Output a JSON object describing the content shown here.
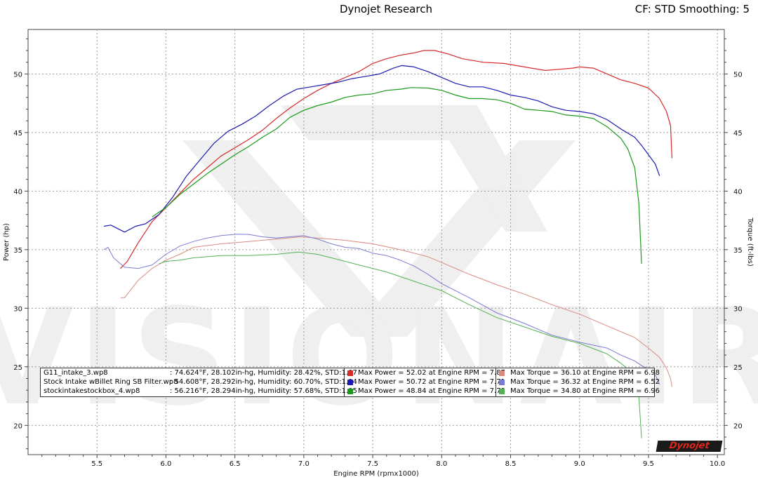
{
  "header": {
    "title": "Dynojet Research",
    "cf_info": "CF: STD Smoothing: 5"
  },
  "watermark": "VISIONAIR",
  "logo_text": "Dynojet",
  "chart_data": {
    "type": "line",
    "title": "Dynojet Research",
    "xlabel": "Engine RPM (rpmx1000)",
    "ylabel": "Power (hp)",
    "y2label": "Torque (ft-lbs)",
    "xlim": [
      5.0,
      10.05
    ],
    "ylim": [
      17.5,
      53.8
    ],
    "xticks": [
      "5.5",
      "6.0",
      "6.5",
      "7.0",
      "7.5",
      "8.0",
      "8.5",
      "9.0",
      "9.5",
      "10.0"
    ],
    "yticks": [
      "20",
      "25",
      "30",
      "35",
      "40",
      "45",
      "50"
    ],
    "y2ticks": [
      "20",
      "25",
      "30",
      "35",
      "40",
      "45",
      "50"
    ],
    "grid": true,
    "series": [
      {
        "name": "G11_intake_3.wp8 Power",
        "metric": "power",
        "color": "#d42a2a",
        "x": [
          5.67,
          5.72,
          5.8,
          5.9,
          6.0,
          6.1,
          6.2,
          6.3,
          6.4,
          6.5,
          6.6,
          6.7,
          6.8,
          6.9,
          7.0,
          7.1,
          7.2,
          7.3,
          7.4,
          7.5,
          7.6,
          7.7,
          7.8,
          7.87,
          7.95,
          8.05,
          8.15,
          8.3,
          8.45,
          8.6,
          8.75,
          8.85,
          8.95,
          9.0,
          9.1,
          9.2,
          9.3,
          9.4,
          9.5,
          9.58,
          9.63,
          9.66,
          9.67
        ],
        "y": [
          33.4,
          34.0,
          35.6,
          37.4,
          38.6,
          39.8,
          41.0,
          42.0,
          43.0,
          43.7,
          44.4,
          45.2,
          46.2,
          47.1,
          47.9,
          48.6,
          49.2,
          49.7,
          50.2,
          50.9,
          51.3,
          51.6,
          51.8,
          52.0,
          52.0,
          51.7,
          51.3,
          51.0,
          50.9,
          50.6,
          50.3,
          50.4,
          50.5,
          50.6,
          50.5,
          50.0,
          49.5,
          49.2,
          48.8,
          47.9,
          46.8,
          45.6,
          42.8
        ]
      },
      {
        "name": "Stock Intake wBillet Ring SB Filter.wp8 Power",
        "metric": "power",
        "color": "#1a1ab0",
        "x": [
          5.55,
          5.6,
          5.7,
          5.78,
          5.85,
          5.95,
          6.05,
          6.15,
          6.25,
          6.35,
          6.45,
          6.55,
          6.65,
          6.75,
          6.85,
          6.95,
          7.05,
          7.15,
          7.25,
          7.35,
          7.45,
          7.55,
          7.65,
          7.71,
          7.8,
          7.9,
          8.0,
          8.1,
          8.2,
          8.3,
          8.4,
          8.5,
          8.6,
          8.7,
          8.8,
          8.9,
          9.0,
          9.1,
          9.2,
          9.3,
          9.4,
          9.45,
          9.5,
          9.55,
          9.58
        ],
        "y": [
          37.0,
          37.1,
          36.5,
          37.0,
          37.2,
          38.0,
          39.5,
          41.3,
          42.7,
          44.1,
          45.1,
          45.7,
          46.4,
          47.3,
          48.1,
          48.7,
          48.9,
          49.1,
          49.3,
          49.6,
          49.8,
          50.0,
          50.5,
          50.72,
          50.6,
          50.2,
          49.7,
          49.2,
          48.9,
          48.9,
          48.6,
          48.2,
          48.0,
          47.7,
          47.2,
          46.9,
          46.8,
          46.6,
          46.1,
          45.3,
          44.6,
          43.9,
          43.1,
          42.3,
          41.3
        ]
      },
      {
        "name": "stockintakestockbox_4.wp8 Power",
        "metric": "power",
        "color": "#1a9a1a",
        "x": [
          5.9,
          6.0,
          6.1,
          6.2,
          6.3,
          6.4,
          6.5,
          6.6,
          6.7,
          6.8,
          6.9,
          7.0,
          7.1,
          7.2,
          7.3,
          7.4,
          7.5,
          7.6,
          7.7,
          7.78,
          7.9,
          8.0,
          8.1,
          8.2,
          8.3,
          8.4,
          8.5,
          8.6,
          8.7,
          8.8,
          8.9,
          9.0,
          9.1,
          9.2,
          9.3,
          9.35,
          9.4,
          9.43,
          9.45
        ],
        "y": [
          37.8,
          38.6,
          39.7,
          40.6,
          41.5,
          42.3,
          43.1,
          43.8,
          44.6,
          45.3,
          46.3,
          46.9,
          47.3,
          47.6,
          48.0,
          48.2,
          48.3,
          48.6,
          48.7,
          48.84,
          48.8,
          48.6,
          48.2,
          47.9,
          47.9,
          47.8,
          47.5,
          47.0,
          46.9,
          46.8,
          46.5,
          46.4,
          46.2,
          45.5,
          44.5,
          43.6,
          42.0,
          39.0,
          33.8
        ]
      },
      {
        "name": "G11_intake_3.wp8 Torque",
        "metric": "torque",
        "color": "#d98a80",
        "x": [
          5.67,
          5.7,
          5.8,
          5.9,
          6.0,
          6.1,
          6.2,
          6.4,
          6.6,
          6.8,
          6.98,
          7.1,
          7.3,
          7.5,
          7.7,
          7.9,
          8.0,
          8.2,
          8.4,
          8.6,
          8.8,
          9.0,
          9.2,
          9.4,
          9.5,
          9.58,
          9.63,
          9.66,
          9.67
        ],
        "y": [
          30.9,
          30.9,
          32.4,
          33.4,
          34.1,
          34.6,
          35.2,
          35.5,
          35.7,
          35.9,
          36.1,
          36.0,
          35.8,
          35.5,
          35.0,
          34.4,
          33.9,
          32.9,
          32.0,
          31.2,
          30.3,
          29.5,
          28.5,
          27.5,
          26.6,
          25.8,
          24.9,
          24.0,
          23.3
        ]
      },
      {
        "name": "Stock Intake wBillet Ring SB Filter.wp8 Torque",
        "metric": "torque",
        "color": "#7b7bd4",
        "x": [
          5.55,
          5.58,
          5.62,
          5.7,
          5.8,
          5.9,
          6.0,
          6.1,
          6.2,
          6.3,
          6.4,
          6.52,
          6.6,
          6.7,
          6.8,
          6.9,
          7.0,
          7.1,
          7.2,
          7.3,
          7.4,
          7.5,
          7.6,
          7.7,
          7.8,
          7.9,
          8.0,
          8.2,
          8.4,
          8.6,
          8.8,
          9.0,
          9.2,
          9.3,
          9.4,
          9.45,
          9.5,
          9.55,
          9.58
        ],
        "y": [
          35.0,
          35.2,
          34.3,
          33.5,
          33.4,
          33.7,
          34.6,
          35.3,
          35.7,
          36.0,
          36.2,
          36.32,
          36.3,
          36.1,
          36.0,
          36.1,
          36.2,
          35.9,
          35.5,
          35.2,
          35.1,
          34.7,
          34.5,
          34.1,
          33.6,
          32.9,
          32.1,
          30.9,
          29.6,
          28.7,
          27.7,
          27.1,
          26.6,
          26.0,
          25.5,
          25.1,
          24.8,
          24.3,
          23.5
        ]
      },
      {
        "name": "stockintakestockbox_4.wp8 Torque",
        "metric": "torque",
        "color": "#55b055",
        "x": [
          5.95,
          6.0,
          6.1,
          6.2,
          6.3,
          6.4,
          6.6,
          6.8,
          6.96,
          7.1,
          7.2,
          7.4,
          7.6,
          7.8,
          8.0,
          8.2,
          8.4,
          8.6,
          8.8,
          9.0,
          9.2,
          9.3,
          9.4,
          9.43,
          9.45
        ],
        "y": [
          33.8,
          34.0,
          34.1,
          34.3,
          34.4,
          34.5,
          34.5,
          34.6,
          34.8,
          34.6,
          34.3,
          33.7,
          33.1,
          32.3,
          31.5,
          30.3,
          29.2,
          28.4,
          27.6,
          27.0,
          26.1,
          25.3,
          24.3,
          22.5,
          18.9
        ]
      }
    ],
    "legend": {
      "placement": "bottom-center",
      "rows": [
        {
          "name": "G11_intake_3.wp8",
          "conditions": ": 74.624°F, 28.102in-hg, Humidity: 28.42%, STD:1.07",
          "power": "Max Power = 52.02 at Engine RPM = 7.87",
          "torque": "Max Torque = 36.10 at Engine RPM = 6.98",
          "power_color": "#d42a2a",
          "torque_color": "#d98a80"
        },
        {
          "name": "Stock Intake wBillet Ring SB Filter.wp8",
          "conditions": ": 54.608°F, 28.292in-hg, Humidity: 60.70%, STD:1.04",
          "power": "Max Power = 50.72 at Engine RPM = 7.71",
          "torque": "Max Torque = 36.32 at Engine RPM = 6.52",
          "power_color": "#1a1ab0",
          "torque_color": "#7b7bd4"
        },
        {
          "name": "stockintakestockbox_4.wp8",
          "conditions": ": 56.216°F, 28.294in-hg, Humidity: 57.68%, STD:1.05",
          "power": "Max Power = 48.84 at Engine RPM = 7.78",
          "torque": "Max Torque = 34.80 at Engine RPM = 6.96",
          "power_color": "#1a9a1a",
          "torque_color": "#55b055"
        }
      ]
    }
  }
}
